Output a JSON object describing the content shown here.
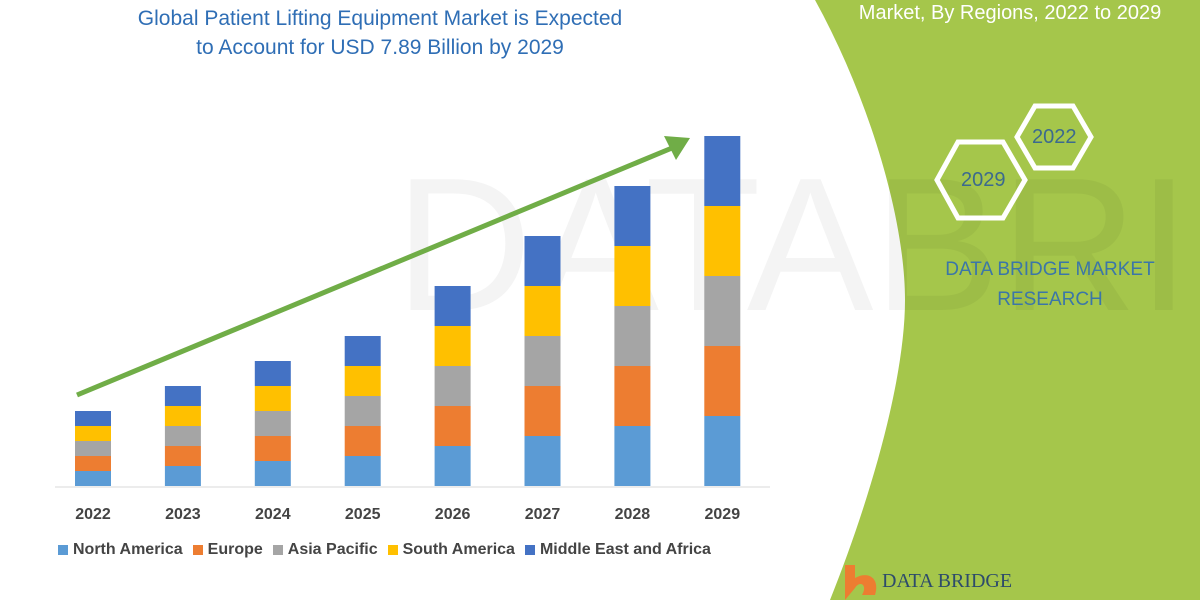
{
  "header": {
    "title_line1": "Global Patient Lifting Equipment Market is Expected",
    "title_line2": "to Account for USD 7.89 Billion by 2029",
    "right_title": "Market, By Regions, 2022 to 2029"
  },
  "side_panel": {
    "hex_2022": "2022",
    "hex_2029": "2029",
    "brand_line1": "DATA BRIDGE MARKET",
    "brand_line2": "RESEARCH",
    "logo_text": "DATA BRIDGE",
    "panel_color": "#a5c64b"
  },
  "chart_data": {
    "type": "bar",
    "stacked": true,
    "categories": [
      "2022",
      "2023",
      "2024",
      "2025",
      "2026",
      "2027",
      "2028",
      "2029"
    ],
    "series": [
      {
        "name": "North America",
        "color": "#5b9bd5",
        "values": [
          1.5,
          2.0,
          2.5,
          3.0,
          4.0,
          5.0,
          6.0,
          7.0
        ]
      },
      {
        "name": "Europe",
        "color": "#ed7d31",
        "values": [
          1.5,
          2.0,
          2.5,
          3.0,
          4.0,
          5.0,
          6.0,
          7.0
        ]
      },
      {
        "name": "Asia Pacific",
        "color": "#a5a5a5",
        "values": [
          1.5,
          2.0,
          2.5,
          3.0,
          4.0,
          5.0,
          6.0,
          7.0
        ]
      },
      {
        "name": "South America",
        "color": "#ffc000",
        "values": [
          1.5,
          2.0,
          2.5,
          3.0,
          4.0,
          5.0,
          6.0,
          7.0
        ]
      },
      {
        "name": "Middle East and Africa",
        "color": "#4472c4",
        "values": [
          1.5,
          2.0,
          2.5,
          3.0,
          4.0,
          5.0,
          6.0,
          7.0
        ]
      }
    ],
    "ylim": [
      0,
      35
    ],
    "grid": false,
    "legend": "bottom",
    "trend_arrow_color": "#70ad47"
  }
}
